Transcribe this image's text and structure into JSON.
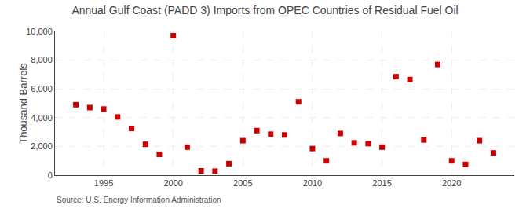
{
  "chart_data": {
    "type": "scatter",
    "title": "Annual Gulf Coast (PADD 3) Imports from OPEC Countries of Residual Fuel Oil",
    "ylabel": "Thousand Barrels",
    "annotations": [
      "Source: U.S. Energy Information Administration"
    ],
    "x": [
      1993,
      1994,
      1995,
      1996,
      1997,
      1998,
      1999,
      2000,
      2001,
      2002,
      2003,
      2004,
      2005,
      2006,
      2007,
      2008,
      2009,
      2010,
      2011,
      2012,
      2013,
      2014,
      2015,
      2016,
      2017,
      2018,
      2019,
      2020,
      2021,
      2022,
      2023
    ],
    "values": [
      4900,
      4700,
      4600,
      4050,
      3250,
      2150,
      1450,
      9700,
      1950,
      300,
      280,
      800,
      2400,
      3100,
      2850,
      2800,
      5100,
      1850,
      1000,
      2900,
      2250,
      2200,
      1950,
      6850,
      6650,
      2450,
      7700,
      1000,
      750,
      2400,
      1550
    ],
    "color": "#cc0000",
    "marker": "square",
    "xlim": [
      1991.5,
      2024.5
    ],
    "xticks": [
      1995,
      2000,
      2005,
      2010,
      2015,
      2020
    ],
    "ylim": [
      0,
      10000
    ],
    "yticks": [
      0,
      {
        "value": 2000,
        "label": "2,000"
      },
      {
        "value": 4000,
        "label": "4,000"
      },
      {
        "value": 6000,
        "label": "6,000"
      },
      {
        "value": 8000,
        "label": "8,000"
      },
      {
        "value": 10000,
        "label": "10,000"
      }
    ],
    "grid": true
  }
}
